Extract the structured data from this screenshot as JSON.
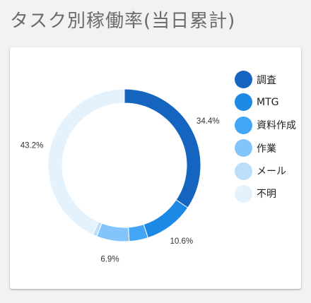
{
  "page": {
    "title": "タスク別稼働率(当日累計)"
  },
  "chart_data": {
    "type": "pie",
    "categories": [
      "調査",
      "MTG",
      "資料作成",
      "作業",
      "メール",
      "不明"
    ],
    "values": [
      34.4,
      10.6,
      4.0,
      6.9,
      0.9,
      43.2
    ],
    "colors": [
      "#1565c0",
      "#1e88e5",
      "#42a5f5",
      "#82c4fb",
      "#bbdefb",
      "#e3f2fd"
    ],
    "data_labels": [
      "34.4%",
      "10.6%",
      "",
      "6.9%",
      "",
      "43.2%"
    ],
    "donut": true,
    "legend_position": "right"
  }
}
